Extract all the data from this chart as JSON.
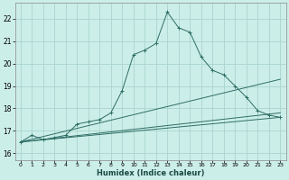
{
  "xlabel": "Humidex (Indice chaleur)",
  "bg_color": "#cceee8",
  "grid_color": "#aad4ce",
  "line_color": "#2d6e65",
  "xlim": [
    -0.5,
    23.5
  ],
  "ylim": [
    15.7,
    22.7
  ],
  "yticks": [
    16,
    17,
    18,
    19,
    20,
    21,
    22
  ],
  "xticks": [
    0,
    1,
    2,
    3,
    4,
    5,
    6,
    7,
    8,
    9,
    10,
    11,
    12,
    13,
    14,
    15,
    16,
    17,
    18,
    19,
    20,
    21,
    22,
    23
  ],
  "main_series": {
    "x": [
      0,
      1,
      2,
      3,
      4,
      5,
      6,
      7,
      8,
      9,
      10,
      11,
      12,
      13,
      14,
      15,
      16,
      17,
      18,
      19,
      20,
      21,
      22,
      23
    ],
    "y": [
      16.5,
      16.8,
      16.6,
      16.7,
      16.8,
      17.3,
      17.4,
      17.5,
      17.8,
      18.8,
      20.4,
      20.6,
      20.9,
      22.3,
      21.6,
      21.4,
      20.3,
      19.7,
      19.5,
      19.0,
      18.5,
      17.9,
      17.7,
      17.6
    ]
  },
  "fan_lines": [
    {
      "x": [
        0,
        23
      ],
      "y": [
        16.5,
        17.6
      ]
    },
    {
      "x": [
        0,
        23
      ],
      "y": [
        16.5,
        17.8
      ]
    },
    {
      "x": [
        0,
        23
      ],
      "y": [
        16.5,
        19.3
      ]
    }
  ]
}
